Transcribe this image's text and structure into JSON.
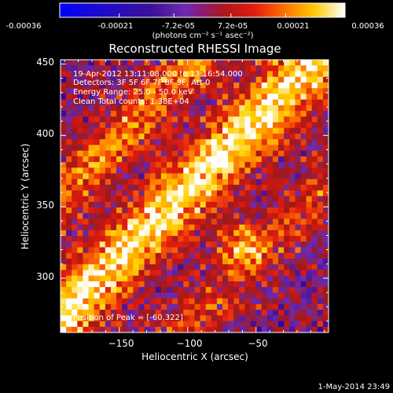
{
  "colorbar": {
    "tick_labels": [
      "-0.00036",
      "-0.00021",
      "-7.2e-05",
      "7.2e-05",
      "0.00021",
      "0.00036"
    ],
    "units_label": "(photons cm⁻² s⁻¹ asec⁻²)",
    "range": [
      -0.00036,
      0.00036
    ]
  },
  "plot": {
    "title": "Reconstructed RHESSI Image",
    "overlay_lines": [
      "19-Apr-2012 13:11:08.000 to 13:16:54.000",
      "Detectors: 3F 5F 6F 7F 8F 9F, Att 0",
      "Energy Range: 25.0 - 50.0 keV",
      "Clean     Total counts: 1.38E+04"
    ],
    "peak_text": "Position of Peak = [-60,322]"
  },
  "chart_data": {
    "type": "heatmap",
    "title": "Reconstructed RHESSI Image",
    "xlabel": "Heliocentric X (arcsec)",
    "ylabel": "Heliocentric Y (arcsec)",
    "xlim": [
      -193,
      3
    ],
    "ylim": [
      262,
      453
    ],
    "x_ticks": [
      -150,
      -100,
      -50
    ],
    "y_ticks": [
      300,
      350,
      400,
      450
    ],
    "x_tick_labels": [
      "−150",
      "−100",
      "−50"
    ],
    "y_tick_labels": [
      "300",
      "350",
      "400",
      "450"
    ],
    "colorbar_range": [
      -0.00036,
      0.00036
    ],
    "peak_position": [
      -60,
      322
    ],
    "colormap_stops": [
      "#0000ff",
      "#3a0a8c",
      "#6e2bb0",
      "#a01818",
      "#e01a10",
      "#ff7a00",
      "#ffd200",
      "#ffffff"
    ],
    "grid_cells": {
      "x": 48,
      "y": 48
    }
  },
  "footer": {
    "timestamp": "1-May-2014 23:49"
  }
}
